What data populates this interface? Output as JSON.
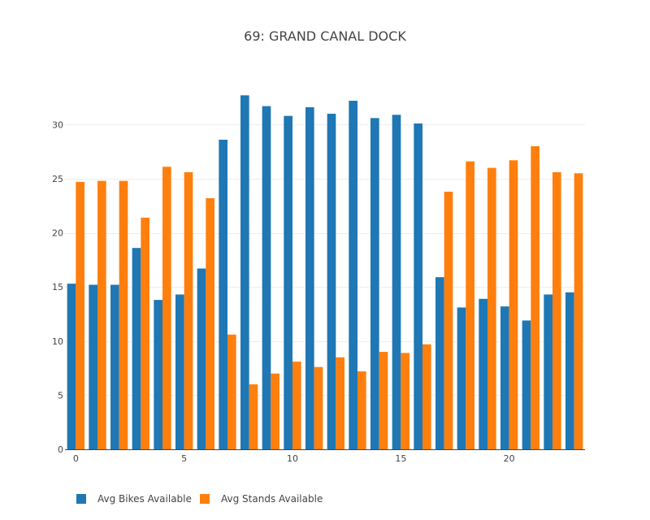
{
  "chart_data": {
    "type": "bar",
    "title": "69: GRAND CANAL DOCK",
    "xlabel": "",
    "ylabel": "",
    "x": [
      0,
      1,
      2,
      3,
      4,
      5,
      6,
      7,
      8,
      9,
      10,
      11,
      12,
      13,
      14,
      15,
      16,
      17,
      18,
      19,
      20,
      21,
      22,
      23
    ],
    "x_ticks": [
      0,
      5,
      10,
      15,
      20
    ],
    "y_ticks": [
      0,
      5,
      10,
      15,
      20,
      25,
      30
    ],
    "ylim": [
      0,
      34
    ],
    "grid": true,
    "legend_position": "bottom-left",
    "series": [
      {
        "name": "Avg Bikes Available",
        "color": "#1f77b4",
        "values": [
          15.3,
          15.2,
          15.2,
          18.6,
          13.8,
          14.3,
          16.7,
          28.6,
          32.7,
          31.7,
          30.8,
          31.6,
          31.0,
          32.2,
          30.6,
          30.9,
          30.1,
          15.9,
          13.1,
          13.9,
          13.2,
          11.9,
          14.3,
          14.5
        ]
      },
      {
        "name": "Avg Stands Available",
        "color": "#ff7f0e",
        "values": [
          24.7,
          24.8,
          24.8,
          21.4,
          26.1,
          25.6,
          23.2,
          10.6,
          6.0,
          7.0,
          8.1,
          7.6,
          8.5,
          7.2,
          9.0,
          8.9,
          9.7,
          23.8,
          26.6,
          26.0,
          26.7,
          28.0,
          25.6,
          25.5
        ]
      }
    ]
  }
}
